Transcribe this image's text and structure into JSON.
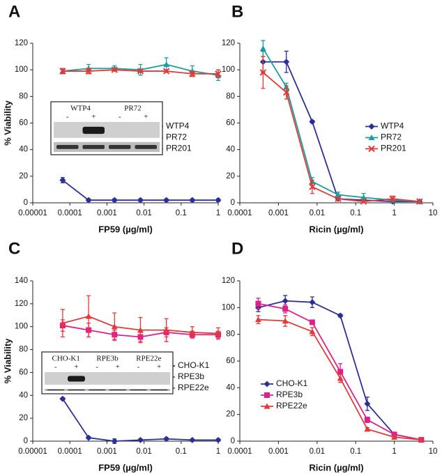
{
  "chart_data": [
    {
      "type": "line",
      "panel_label": "A",
      "xlabel": "FP59 (µg/ml)",
      "ylabel": "% Viability",
      "xscale": "log",
      "x": [
        6.4e-05,
        0.00032,
        0.0016,
        0.008,
        0.04,
        0.2,
        1
      ],
      "xlim": [
        1e-05,
        1
      ],
      "xticks": [
        1e-05,
        0.0001,
        0.001,
        0.01,
        0.1,
        1
      ],
      "ylim": [
        0,
        120
      ],
      "yticks": [
        0,
        20,
        40,
        60,
        80,
        100,
        120
      ],
      "legend": "center right",
      "series": [
        {
          "name": "WTP4",
          "color": "#2b2f96",
          "marker": "diamond",
          "values": [
            17,
            2,
            2,
            2,
            2,
            2,
            2
          ],
          "errors": [
            2,
            1,
            1,
            1,
            1,
            1,
            1
          ]
        },
        {
          "name": "PR72",
          "color": "#1a9e9e",
          "marker": "triangle",
          "values": [
            99,
            101,
            101,
            100,
            104,
            99,
            96
          ],
          "errors": [
            2,
            3,
            2,
            4,
            5,
            4,
            4
          ]
        },
        {
          "name": "PR201",
          "color": "#e03a3a",
          "marker": "cross",
          "values": [
            99,
            99,
            100,
            99,
            99,
            97,
            97
          ],
          "errors": [
            2,
            2,
            1,
            1,
            1,
            2,
            3
          ]
        }
      ],
      "inset": {
        "groups": [
          "WTP4",
          "PR72"
        ],
        "signs": [
          "-",
          "+",
          "-",
          "+"
        ]
      }
    },
    {
      "type": "line",
      "panel_label": "B",
      "xlabel": "Ricin (µg/ml)",
      "xscale": "log",
      "x": [
        0.0004,
        0.0016,
        0.0075,
        0.035,
        0.16,
        0.9,
        4.5
      ],
      "xlim": [
        0.0001,
        10
      ],
      "xticks": [
        0.0001,
        0.001,
        0.01,
        0.1,
        1,
        10
      ],
      "ylim": [
        0,
        120
      ],
      "yticks": [
        0,
        20,
        40,
        60,
        80,
        100,
        120
      ],
      "legend": "center right",
      "series": [
        {
          "name": "WTP4",
          "color": "#2b2f96",
          "marker": "diamond",
          "values": [
            106,
            106,
            61,
            3,
            2,
            1,
            1
          ],
          "errors": [
            8,
            8,
            1,
            1,
            1,
            1,
            1
          ]
        },
        {
          "name": "PR72",
          "color": "#1a9e9e",
          "marker": "triangle",
          "values": [
            116,
            87,
            16,
            6,
            4,
            2,
            1
          ],
          "errors": [
            6,
            3,
            3,
            2,
            3,
            1,
            1
          ]
        },
        {
          "name": "PR201",
          "color": "#e03a3a",
          "marker": "cross",
          "values": [
            98,
            83,
            12,
            3,
            1,
            3,
            1
          ],
          "errors": [
            12,
            5,
            5,
            1,
            1,
            2,
            1
          ]
        }
      ]
    },
    {
      "type": "line",
      "panel_label": "C",
      "xlabel": "FP59 (µg/ml)",
      "ylabel": "% Viability",
      "xscale": "log",
      "x": [
        6.4e-05,
        0.00032,
        0.0016,
        0.008,
        0.04,
        0.2,
        1
      ],
      "xlim": [
        1e-05,
        1
      ],
      "xticks": [
        1e-05,
        0.0001,
        0.001,
        0.01,
        0.1,
        1
      ],
      "ylim": [
        0,
        140
      ],
      "yticks": [
        0,
        20,
        40,
        60,
        80,
        100,
        120,
        140
      ],
      "legend": "lower right",
      "series": [
        {
          "name": "CHO-K1",
          "color": "#2b2f96",
          "marker": "diamond",
          "values": [
            37,
            3,
            0,
            1,
            2,
            1,
            1
          ],
          "errors": [
            1,
            1,
            2,
            1,
            1,
            1,
            1
          ]
        },
        {
          "name": "RPE3b",
          "color": "#e0208a",
          "marker": "square",
          "values": [
            101,
            97,
            93,
            91,
            95,
            93,
            93
          ],
          "errors": [
            5,
            6,
            4,
            4,
            4,
            3,
            3
          ]
        },
        {
          "name": "RPE22e",
          "color": "#e03a3a",
          "marker": "triangle",
          "values": [
            103,
            109,
            100,
            97,
            97,
            95,
            94
          ],
          "errors": [
            12,
            18,
            12,
            11,
            10,
            5,
            5
          ]
        }
      ],
      "inset": {
        "groups": [
          "CHO-K1",
          "RPE3b",
          "RPE22e"
        ],
        "signs": [
          "-",
          "+",
          "-",
          "+",
          "-",
          "+"
        ]
      }
    },
    {
      "type": "line",
      "panel_label": "D",
      "xlabel": "Ricin (µg/ml)",
      "xscale": "log",
      "x": [
        0.0003,
        0.0015,
        0.0075,
        0.04,
        0.2,
        1,
        5
      ],
      "xlim": [
        0.0001,
        10
      ],
      "xticks": [
        0.0001,
        0.001,
        0.01,
        0.1,
        1,
        10
      ],
      "ylim": [
        0,
        120
      ],
      "yticks": [
        0,
        20,
        40,
        60,
        80,
        100,
        120
      ],
      "legend": "lower left",
      "series": [
        {
          "name": "CHO-K1",
          "color": "#2b2f96",
          "marker": "diamond",
          "values": [
            100,
            105,
            104,
            94,
            28,
            5,
            1
          ],
          "errors": [
            3,
            4,
            4,
            1,
            5,
            1,
            1
          ]
        },
        {
          "name": "RPE3b",
          "color": "#e0208a",
          "marker": "square",
          "values": [
            103,
            99,
            89,
            52,
            16,
            5,
            1
          ],
          "errors": [
            4,
            3,
            1,
            6,
            2,
            1,
            1
          ]
        },
        {
          "name": "RPE22e",
          "color": "#e03a3a",
          "marker": "triangle",
          "values": [
            91,
            90,
            82,
            47,
            9,
            3,
            1
          ],
          "errors": [
            3,
            4,
            3,
            3,
            1,
            1,
            1
          ]
        }
      ]
    }
  ]
}
